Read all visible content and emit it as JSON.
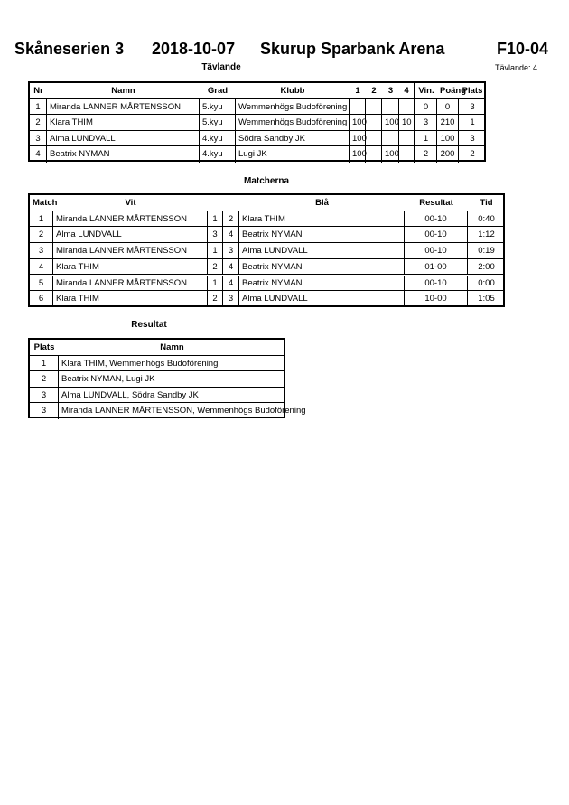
{
  "header": {
    "series": "Skåneserien 3",
    "date": "2018-10-07",
    "venue": "Skurup Sparbank Arena",
    "group": "F10-04",
    "competitors_count": "Tävlande: 4"
  },
  "competitors": {
    "title": "Tävlande",
    "columns": [
      "Nr",
      "Namn",
      "Grad",
      "Klubb",
      "1",
      "2",
      "3",
      "4",
      "Vin.",
      "Poäng",
      "Plats"
    ],
    "rows": [
      [
        "1",
        "Miranda LANNER MÅRTENSSON",
        "5.kyu",
        "Wemmenhögs Budoförening",
        "",
        "",
        "",
        "",
        "0",
        "0",
        "3"
      ],
      [
        "2",
        "Klara THIM",
        "5.kyu",
        "Wemmenhögs Budoförening",
        "100",
        "",
        "100",
        "10",
        "3",
        "210",
        "1"
      ],
      [
        "3",
        "Alma LUNDVALL",
        "4.kyu",
        "Södra Sandby JK",
        "100",
        "",
        "",
        "",
        "1",
        "100",
        "3"
      ],
      [
        "4",
        "Beatrix NYMAN",
        "4.kyu",
        "Lugi JK",
        "100",
        "",
        "100",
        "",
        "2",
        "200",
        "2"
      ]
    ]
  },
  "matches": {
    "title": "Matcherna",
    "columns": [
      "Match",
      "Vit",
      "",
      "",
      "Blå",
      "Resultat",
      "Tid"
    ],
    "rows": [
      [
        "1",
        "Miranda LANNER MÅRTENSSON",
        "1",
        "2",
        "Klara THIM",
        "00-10",
        "0:40"
      ],
      [
        "2",
        "Alma LUNDVALL",
        "3",
        "4",
        "Beatrix NYMAN",
        "00-10",
        "1:12"
      ],
      [
        "3",
        "Miranda LANNER MÅRTENSSON",
        "1",
        "3",
        "Alma LUNDVALL",
        "00-10",
        "0:19"
      ],
      [
        "4",
        "Klara THIM",
        "2",
        "4",
        "Beatrix NYMAN",
        "01-00",
        "2:00"
      ],
      [
        "5",
        "Miranda LANNER MÅRTENSSON",
        "1",
        "4",
        "Beatrix NYMAN",
        "00-10",
        "0:00"
      ],
      [
        "6",
        "Klara THIM",
        "2",
        "3",
        "Alma LUNDVALL",
        "10-00",
        "1:05"
      ]
    ]
  },
  "results": {
    "title": "Resultat",
    "columns": [
      "Plats",
      "Namn"
    ],
    "rows": [
      [
        "1",
        "Klara THIM, Wemmenhögs Budoförening"
      ],
      [
        "2",
        "Beatrix NYMAN, Lugi JK"
      ],
      [
        "3",
        "Alma LUNDVALL, Södra Sandby JK"
      ],
      [
        "3",
        "Miranda LANNER MÅRTENSSON, Wemmenhögs Budoförening"
      ]
    ]
  }
}
